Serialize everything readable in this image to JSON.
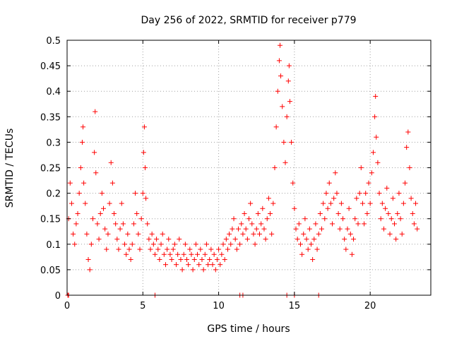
{
  "chart_data": {
    "type": "scatter",
    "title": "Day 256 of 2022, SRMTID for receiver p779",
    "xlabel": "GPS time / hours",
    "ylabel": "SRMTID / TECUs",
    "xlim": [
      0,
      24
    ],
    "ylim": [
      0,
      0.5
    ],
    "x_ticks": [
      0,
      5,
      10,
      15,
      20
    ],
    "x_tick_labels": [
      "0",
      "5",
      "10",
      "15",
      "20"
    ],
    "y_ticks": [
      0,
      0.05,
      0.1,
      0.15,
      0.2,
      0.25,
      0.3,
      0.35,
      0.4,
      0.45,
      0.5
    ],
    "y_tick_labels": [
      "0",
      "0.05",
      "0.1",
      "0.15",
      "0.2",
      "0.25",
      "0.3",
      "0.35",
      "0.4",
      "0.45",
      "0.5"
    ],
    "grid": true,
    "marker": "+",
    "marker_color": "#ff0000",
    "series": [
      {
        "name": "SRMTID",
        "points": [
          [
            0.1,
            0.15
          ],
          [
            0.2,
            0.22
          ],
          [
            0.3,
            0.18
          ],
          [
            0.4,
            0.12
          ],
          [
            0.5,
            0.1
          ],
          [
            0.6,
            0.14
          ],
          [
            0.7,
            0.16
          ],
          [
            0.8,
            0.2
          ],
          [
            0.9,
            0.25
          ],
          [
            1.0,
            0.3
          ],
          [
            1.05,
            0.33
          ],
          [
            1.1,
            0.22
          ],
          [
            1.2,
            0.18
          ],
          [
            1.3,
            0.12
          ],
          [
            1.4,
            0.07
          ],
          [
            1.5,
            0.05
          ],
          [
            1.6,
            0.1
          ],
          [
            1.7,
            0.15
          ],
          [
            1.8,
            0.28
          ],
          [
            1.85,
            0.36
          ],
          [
            1.9,
            0.24
          ],
          [
            2.0,
            0.14
          ],
          [
            2.1,
            0.11
          ],
          [
            2.2,
            0.16
          ],
          [
            2.3,
            0.2
          ],
          [
            2.4,
            0.17
          ],
          [
            2.5,
            0.13
          ],
          [
            2.6,
            0.09
          ],
          [
            2.7,
            0.12
          ],
          [
            2.8,
            0.18
          ],
          [
            2.9,
            0.26
          ],
          [
            3.0,
            0.22
          ],
          [
            3.1,
            0.16
          ],
          [
            3.2,
            0.14
          ],
          [
            3.3,
            0.11
          ],
          [
            3.4,
            0.09
          ],
          [
            3.5,
            0.13
          ],
          [
            3.6,
            0.18
          ],
          [
            3.7,
            0.14
          ],
          [
            3.8,
            0.1
          ],
          [
            3.9,
            0.08
          ],
          [
            4.0,
            0.12
          ],
          [
            4.1,
            0.09
          ],
          [
            4.2,
            0.07
          ],
          [
            4.3,
            0.1
          ],
          [
            4.4,
            0.14
          ],
          [
            4.5,
            0.2
          ],
          [
            4.6,
            0.16
          ],
          [
            4.7,
            0.12
          ],
          [
            4.8,
            0.09
          ],
          [
            4.9,
            0.15
          ],
          [
            5.0,
            0.2
          ],
          [
            5.05,
            0.28
          ],
          [
            5.1,
            0.33
          ],
          [
            5.15,
            0.25
          ],
          [
            5.2,
            0.19
          ],
          [
            5.3,
            0.14
          ],
          [
            5.4,
            0.11
          ],
          [
            5.5,
            0.09
          ],
          [
            5.6,
            0.12
          ],
          [
            5.7,
            0.1
          ],
          [
            5.8,
            0.08
          ],
          [
            5.9,
            0.11
          ],
          [
            6.0,
            0.09
          ],
          [
            6.1,
            0.07
          ],
          [
            6.2,
            0.1
          ],
          [
            6.3,
            0.12
          ],
          [
            6.4,
            0.08
          ],
          [
            6.5,
            0.06
          ],
          [
            6.6,
            0.09
          ],
          [
            6.7,
            0.11
          ],
          [
            6.8,
            0.08
          ],
          [
            6.9,
            0.07
          ],
          [
            7.0,
            0.09
          ],
          [
            7.1,
            0.1
          ],
          [
            7.2,
            0.06
          ],
          [
            7.3,
            0.08
          ],
          [
            7.4,
            0.11
          ],
          [
            7.5,
            0.07
          ],
          [
            7.6,
            0.05
          ],
          [
            7.7,
            0.08
          ],
          [
            7.8,
            0.1
          ],
          [
            7.9,
            0.07
          ],
          [
            8.0,
            0.06
          ],
          [
            8.1,
            0.09
          ],
          [
            8.2,
            0.08
          ],
          [
            8.3,
            0.05
          ],
          [
            8.4,
            0.07
          ],
          [
            8.5,
            0.1
          ],
          [
            8.6,
            0.08
          ],
          [
            8.7,
            0.06
          ],
          [
            8.8,
            0.09
          ],
          [
            8.9,
            0.07
          ],
          [
            9.0,
            0.05
          ],
          [
            9.1,
            0.08
          ],
          [
            9.2,
            0.1
          ],
          [
            9.3,
            0.06
          ],
          [
            9.4,
            0.07
          ],
          [
            9.5,
            0.09
          ],
          [
            9.6,
            0.06
          ],
          [
            9.7,
            0.08
          ],
          [
            9.8,
            0.05
          ],
          [
            9.9,
            0.07
          ],
          [
            10.0,
            0.09
          ],
          [
            10.1,
            0.06
          ],
          [
            10.2,
            0.08
          ],
          [
            10.3,
            0.1
          ],
          [
            10.4,
            0.07
          ],
          [
            10.5,
            0.11
          ],
          [
            10.6,
            0.09
          ],
          [
            10.7,
            0.12
          ],
          [
            10.8,
            0.1
          ],
          [
            10.9,
            0.13
          ],
          [
            11.0,
            0.15
          ],
          [
            11.1,
            0.11
          ],
          [
            11.2,
            0.09
          ],
          [
            11.3,
            0.13
          ],
          [
            11.4,
            0.1
          ],
          [
            11.5,
            0.14
          ],
          [
            11.6,
            0.12
          ],
          [
            11.7,
            0.16
          ],
          [
            11.8,
            0.13
          ],
          [
            11.9,
            0.11
          ],
          [
            12.0,
            0.15
          ],
          [
            12.1,
            0.18
          ],
          [
            12.2,
            0.14
          ],
          [
            12.3,
            0.12
          ],
          [
            12.4,
            0.1
          ],
          [
            12.5,
            0.13
          ],
          [
            12.6,
            0.16
          ],
          [
            12.7,
            0.12
          ],
          [
            12.8,
            0.14
          ],
          [
            12.9,
            0.17
          ],
          [
            13.0,
            0.13
          ],
          [
            13.1,
            0.11
          ],
          [
            13.2,
            0.15
          ],
          [
            13.3,
            0.19
          ],
          [
            13.4,
            0.16
          ],
          [
            13.5,
            0.12
          ],
          [
            13.6,
            0.18
          ],
          [
            13.7,
            0.25
          ],
          [
            13.8,
            0.33
          ],
          [
            13.9,
            0.4
          ],
          [
            14.0,
            0.46
          ],
          [
            14.05,
            0.49
          ],
          [
            14.1,
            0.43
          ],
          [
            14.2,
            0.37
          ],
          [
            14.3,
            0.3
          ],
          [
            14.4,
            0.26
          ],
          [
            14.5,
            0.35
          ],
          [
            14.6,
            0.42
          ],
          [
            14.65,
            0.45
          ],
          [
            14.7,
            0.38
          ],
          [
            14.8,
            0.3
          ],
          [
            14.9,
            0.22
          ],
          [
            15.0,
            0.17
          ],
          [
            15.1,
            0.13
          ],
          [
            15.2,
            0.11
          ],
          [
            15.3,
            0.14
          ],
          [
            15.4,
            0.1
          ],
          [
            15.5,
            0.08
          ],
          [
            15.6,
            0.12
          ],
          [
            15.7,
            0.15
          ],
          [
            15.8,
            0.11
          ],
          [
            15.9,
            0.09
          ],
          [
            16.0,
            0.13
          ],
          [
            16.1,
            0.1
          ],
          [
            16.2,
            0.07
          ],
          [
            16.3,
            0.11
          ],
          [
            16.4,
            0.14
          ],
          [
            16.5,
            0.09
          ],
          [
            16.6,
            0.12
          ],
          [
            16.7,
            0.16
          ],
          [
            16.8,
            0.13
          ],
          [
            16.9,
            0.18
          ],
          [
            17.0,
            0.15
          ],
          [
            17.1,
            0.2
          ],
          [
            17.2,
            0.17
          ],
          [
            17.3,
            0.22
          ],
          [
            17.4,
            0.18
          ],
          [
            17.5,
            0.14
          ],
          [
            17.6,
            0.19
          ],
          [
            17.7,
            0.24
          ],
          [
            17.8,
            0.2
          ],
          [
            17.9,
            0.16
          ],
          [
            18.0,
            0.13
          ],
          [
            18.1,
            0.18
          ],
          [
            18.2,
            0.15
          ],
          [
            18.3,
            0.11
          ],
          [
            18.4,
            0.09
          ],
          [
            18.5,
            0.13
          ],
          [
            18.6,
            0.17
          ],
          [
            18.7,
            0.12
          ],
          [
            18.8,
            0.08
          ],
          [
            18.9,
            0.11
          ],
          [
            19.0,
            0.15
          ],
          [
            19.1,
            0.19
          ],
          [
            19.2,
            0.14
          ],
          [
            19.3,
            0.2
          ],
          [
            19.4,
            0.25
          ],
          [
            19.5,
            0.18
          ],
          [
            19.6,
            0.14
          ],
          [
            19.7,
            0.2
          ],
          [
            19.8,
            0.16
          ],
          [
            19.9,
            0.22
          ],
          [
            20.0,
            0.18
          ],
          [
            20.1,
            0.24
          ],
          [
            20.2,
            0.28
          ],
          [
            20.3,
            0.35
          ],
          [
            20.35,
            0.39
          ],
          [
            20.4,
            0.31
          ],
          [
            20.5,
            0.26
          ],
          [
            20.6,
            0.2
          ],
          [
            20.7,
            0.15
          ],
          [
            20.8,
            0.18
          ],
          [
            20.9,
            0.13
          ],
          [
            21.0,
            0.17
          ],
          [
            21.1,
            0.21
          ],
          [
            21.2,
            0.16
          ],
          [
            21.3,
            0.12
          ],
          [
            21.4,
            0.15
          ],
          [
            21.5,
            0.19
          ],
          [
            21.6,
            0.14
          ],
          [
            21.7,
            0.11
          ],
          [
            21.8,
            0.16
          ],
          [
            21.9,
            0.2
          ],
          [
            22.0,
            0.15
          ],
          [
            22.1,
            0.12
          ],
          [
            22.2,
            0.18
          ],
          [
            22.3,
            0.22
          ],
          [
            22.4,
            0.29
          ],
          [
            22.5,
            0.32
          ],
          [
            22.6,
            0.25
          ],
          [
            22.7,
            0.19
          ],
          [
            22.8,
            0.16
          ],
          [
            22.9,
            0.14
          ],
          [
            23.0,
            0.18
          ],
          [
            23.1,
            0.13
          ]
        ],
        "zero_points": [
          0.05,
          0.1,
          5.8,
          11.4,
          11.6,
          14.5,
          15.0,
          16.6
        ]
      }
    ]
  }
}
